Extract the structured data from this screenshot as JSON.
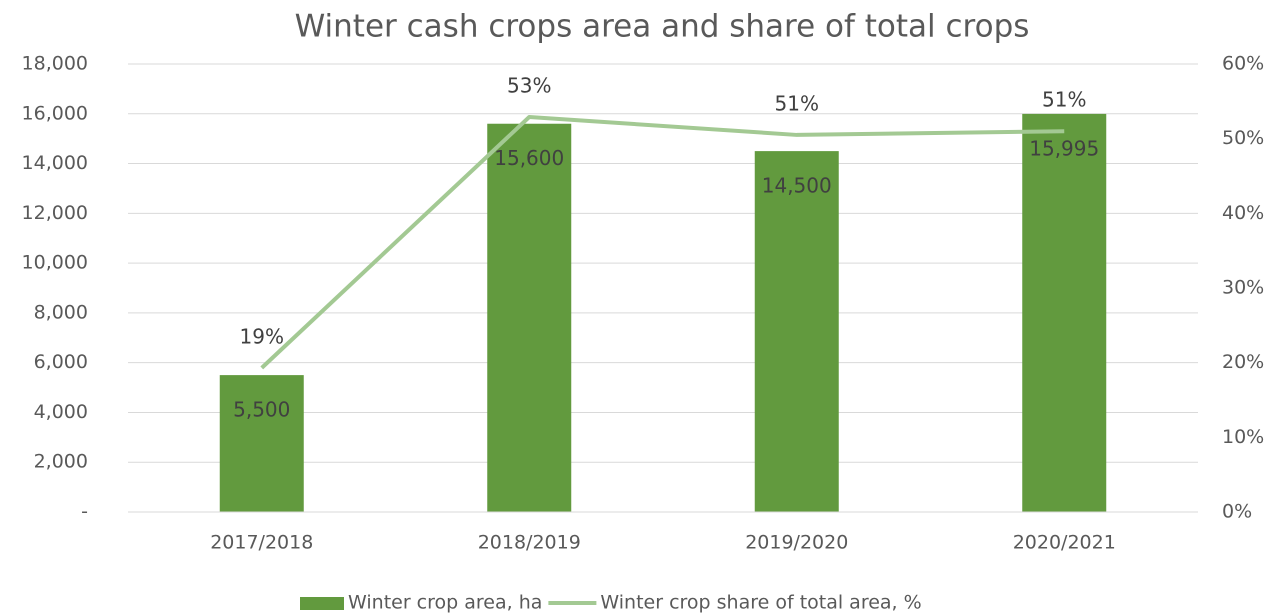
{
  "chart_data": {
    "type": "bar_line",
    "title": "Winter cash crops area and share of total crops",
    "categories": [
      "2017/2018",
      "2018/2019",
      "2019/2020",
      "2020/2021"
    ],
    "series": [
      {
        "name": "Winter crop area, ha",
        "type": "bar",
        "color": "#629a3e",
        "values": [
          5500,
          15600,
          14500,
          15995
        ],
        "value_labels": [
          "5,500",
          "15,600",
          "14,500",
          "15,995"
        ]
      },
      {
        "name": "Winter crop share of total area, %",
        "type": "line",
        "axis": "y2",
        "color": "#a3c993",
        "values": [
          19.3,
          52.9,
          50.5,
          51
        ],
        "value_labels": [
          "19%",
          "53%",
          "51%",
          "51%"
        ]
      }
    ],
    "ylim": [
      0,
      18000
    ],
    "yticks": [
      {
        "value": 0,
        "label": "-"
      },
      {
        "value": 2000,
        "label": "2,000"
      },
      {
        "value": 4000,
        "label": "4,000"
      },
      {
        "value": 6000,
        "label": "6,000"
      },
      {
        "value": 8000,
        "label": "8,000"
      },
      {
        "value": 10000,
        "label": "10,000"
      },
      {
        "value": 12000,
        "label": "12,000"
      },
      {
        "value": 14000,
        "label": "14,000"
      },
      {
        "value": 16000,
        "label": "16,000"
      },
      {
        "value": 18000,
        "label": "18,000"
      }
    ],
    "y2lim": [
      0,
      60
    ],
    "y2ticks": [
      {
        "value": 0,
        "label": "0%"
      },
      {
        "value": 10,
        "label": "10%"
      },
      {
        "value": 20,
        "label": "20%"
      },
      {
        "value": 30,
        "label": "30%"
      },
      {
        "value": 40,
        "label": "40%"
      },
      {
        "value": 50,
        "label": "50%"
      },
      {
        "value": 60,
        "label": "60%"
      }
    ],
    "grid": true,
    "legend": "bottom"
  }
}
